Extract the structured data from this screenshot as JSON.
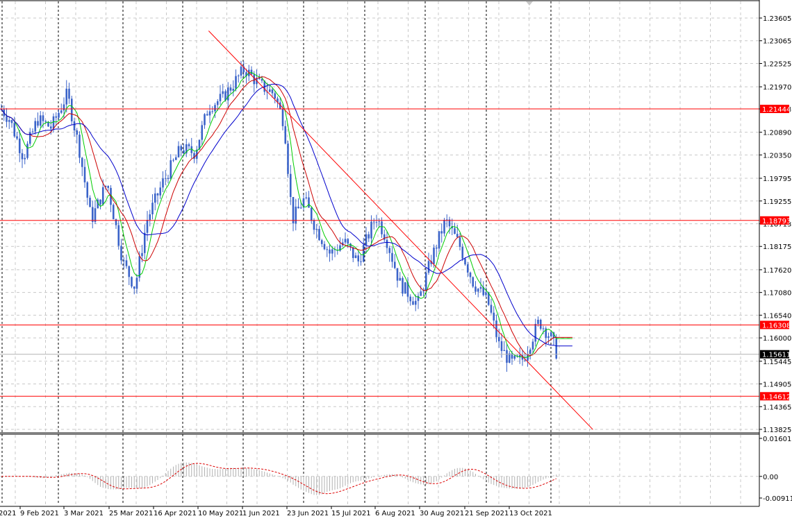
{
  "chart_data": {
    "type": "candlestick",
    "instrument_view": "daily price chart with moving averages and oscillator",
    "price_axis": {
      "ticks": [
        "1.23605",
        "1.23065",
        "1.22525",
        "1.21970",
        "1.21444",
        "1.20890",
        "1.20350",
        "1.19795",
        "1.19255",
        "1.18713",
        "1.18175",
        "1.17620",
        "1.17080",
        "1.16540",
        "1.16000",
        "1.15445",
        "1.14905",
        "1.14365",
        "1.13825"
      ],
      "ylim": [
        1.13825,
        1.23605
      ]
    },
    "oscillator_axis": {
      "ticks": [
        "0.01601",
        "0.00",
        "-0.009117"
      ],
      "ylim": [
        -0.009117,
        0.01601
      ]
    },
    "x_axis": {
      "labels": [
        "2021",
        "9 Feb 2021",
        "3 Mar 2021",
        "25 Mar 2021",
        "16 Apr 2021",
        "10 May 2021",
        "1 Jun 2021",
        "23 Jun 2021",
        "15 Jul 2021",
        "6 Aug 2021",
        "30 Aug 2021",
        "21 Sep 2021",
        "13 Oct 2021"
      ]
    },
    "horizontal_levels": [
      {
        "value": 1.21444,
        "label": "1.21444",
        "color": "#ff0000"
      },
      {
        "value": 1.18793,
        "label": "1.18793",
        "color": "#ff0000"
      },
      {
        "value": 1.16308,
        "label": "1.16308",
        "color": "#ff0000"
      },
      {
        "value": 1.14612,
        "label": "1.14612",
        "color": "#ff0000"
      }
    ],
    "current_price": {
      "value": 1.15611,
      "label": "1.15611",
      "color": "#000000"
    },
    "trendline": {
      "color": "#ff0000",
      "start": {
        "date": "2021-05-07",
        "value": 1.233
      },
      "end": {
        "date": "2021-11-16",
        "value": 1.1382
      }
    },
    "series_colors": {
      "candles": "#3a63c9",
      "ma_fast": "#00cc00",
      "ma_mid": "#cc0000",
      "ma_slow": "#0000cc",
      "oscillator_bars": "#b0b0b0",
      "oscillator_signal": "#dd0000"
    },
    "price_path": [
      {
        "date": "2021-01-20",
        "value": 1.216
      },
      {
        "date": "2021-01-27",
        "value": 1.212
      },
      {
        "date": "2021-02-03",
        "value": 1.203
      },
      {
        "date": "2021-02-10",
        "value": 1.212
      },
      {
        "date": "2021-02-17",
        "value": 1.21
      },
      {
        "date": "2021-02-25",
        "value": 1.218
      },
      {
        "date": "2021-03-03",
        "value": 1.205
      },
      {
        "date": "2021-03-09",
        "value": 1.188
      },
      {
        "date": "2021-03-17",
        "value": 1.197
      },
      {
        "date": "2021-03-25",
        "value": 1.178
      },
      {
        "date": "2021-03-31",
        "value": 1.172
      },
      {
        "date": "2021-04-06",
        "value": 1.188
      },
      {
        "date": "2021-04-14",
        "value": 1.197
      },
      {
        "date": "2021-04-23",
        "value": 1.205
      },
      {
        "date": "2021-04-30",
        "value": 1.204
      },
      {
        "date": "2021-05-07",
        "value": 1.215
      },
      {
        "date": "2021-05-14",
        "value": 1.217
      },
      {
        "date": "2021-05-25",
        "value": 1.224
      },
      {
        "date": "2021-06-02",
        "value": 1.22
      },
      {
        "date": "2021-06-09",
        "value": 1.218
      },
      {
        "date": "2021-06-14",
        "value": 1.211
      },
      {
        "date": "2021-06-18",
        "value": 1.188
      },
      {
        "date": "2021-06-24",
        "value": 1.193
      },
      {
        "date": "2021-06-30",
        "value": 1.186
      },
      {
        "date": "2021-07-07",
        "value": 1.18
      },
      {
        "date": "2021-07-14",
        "value": 1.183
      },
      {
        "date": "2021-07-21",
        "value": 1.178
      },
      {
        "date": "2021-07-30",
        "value": 1.189
      },
      {
        "date": "2021-08-04",
        "value": 1.184
      },
      {
        "date": "2021-08-11",
        "value": 1.173
      },
      {
        "date": "2021-08-20",
        "value": 1.168
      },
      {
        "date": "2021-08-27",
        "value": 1.179
      },
      {
        "date": "2021-09-03",
        "value": 1.188
      },
      {
        "date": "2021-09-10",
        "value": 1.182
      },
      {
        "date": "2021-09-17",
        "value": 1.173
      },
      {
        "date": "2021-09-24",
        "value": 1.169
      },
      {
        "date": "2021-09-30",
        "value": 1.158
      },
      {
        "date": "2021-10-06",
        "value": 1.154
      },
      {
        "date": "2021-10-12",
        "value": 1.155
      },
      {
        "date": "2021-10-20",
        "value": 1.164
      },
      {
        "date": "2021-10-26",
        "value": 1.16
      },
      {
        "date": "2021-10-29",
        "value": 1.1561
      }
    ]
  }
}
